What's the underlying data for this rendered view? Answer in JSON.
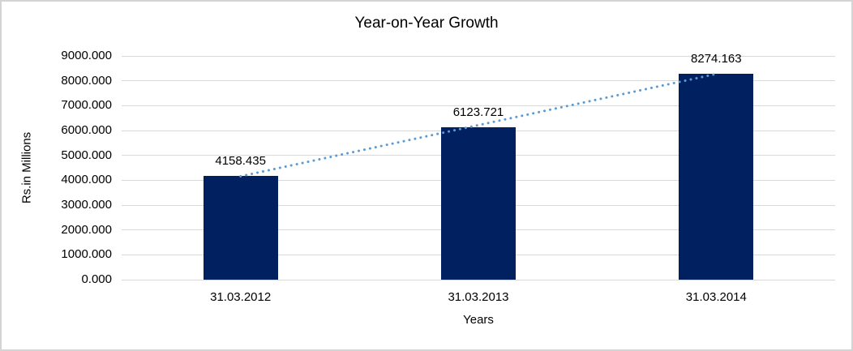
{
  "chart_data": {
    "type": "bar",
    "title": "Year-on-Year Growth",
    "xlabel": "Years",
    "ylabel": "Rs.in Millions",
    "categories": [
      "31.03.2012",
      "31.03.2013",
      "31.03.2014"
    ],
    "values": [
      4158.435,
      6123.721,
      8274.163
    ],
    "data_labels": [
      "4158.435",
      "6123.721",
      "8274.163"
    ],
    "y_ticks": [
      "0.000",
      "1000.000",
      "2000.000",
      "3000.000",
      "4000.000",
      "5000.000",
      "6000.000",
      "7000.000",
      "8000.000",
      "9000.000"
    ],
    "ylim": [
      0,
      9000
    ],
    "grid": true,
    "legend": "none",
    "bar_color": "#002060",
    "gridline_color": "#d9d9d9",
    "text_color": "#000000",
    "border_color": "#d4d4d4",
    "trendline": {
      "type": "linear",
      "style": "dotted",
      "color": "#5b9bd5"
    }
  }
}
